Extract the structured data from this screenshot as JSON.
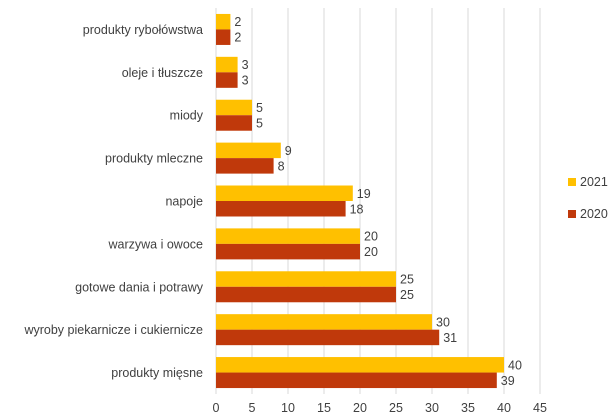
{
  "chart_data": {
    "type": "bar",
    "orientation": "horizontal",
    "categories": [
      "produkty rybołówstwa",
      "oleje i tłuszcze",
      "miody",
      "produkty mleczne",
      "napoje",
      "warzywa i owoce",
      "gotowe dania i potrawy",
      "wyroby piekarnicze i cukiernicze",
      "produkty mięsne"
    ],
    "series": [
      {
        "name": "2021",
        "color": "#FFC000",
        "values": [
          2,
          3,
          5,
          9,
          19,
          20,
          25,
          30,
          40
        ]
      },
      {
        "name": "2020",
        "color": "#C0390B",
        "values": [
          2,
          3,
          5,
          8,
          18,
          20,
          25,
          31,
          39
        ]
      }
    ],
    "xlim": [
      0,
      45
    ],
    "xticks": [
      0,
      5,
      10,
      15,
      20,
      25,
      30,
      35,
      40,
      45
    ],
    "grid": true,
    "data_labels": true,
    "legend": {
      "position": "right",
      "entries": [
        "2021",
        "2020"
      ]
    },
    "title": "",
    "xlabel": "",
    "ylabel": ""
  }
}
